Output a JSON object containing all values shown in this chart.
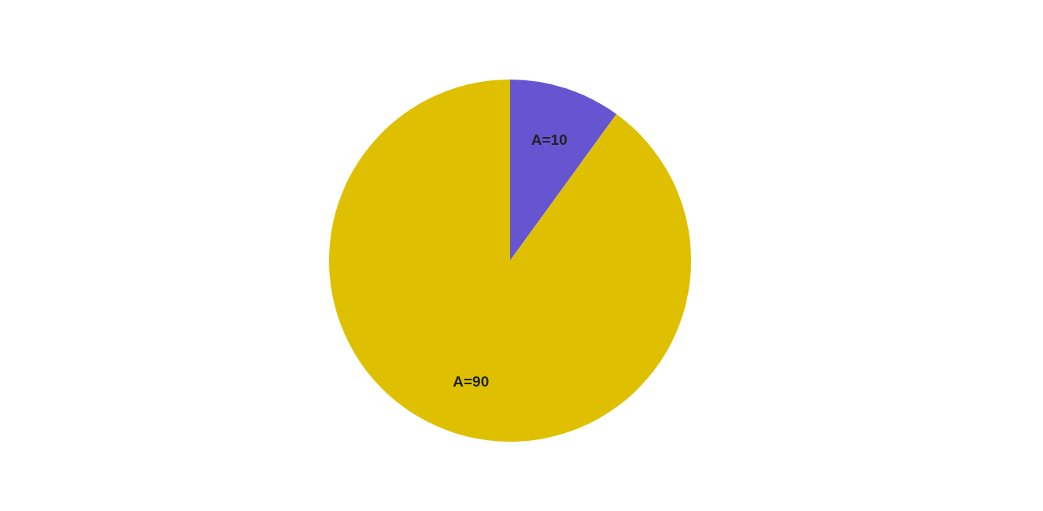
{
  "chart_data": {
    "type": "pie",
    "categories": [
      "A=10",
      "A=90"
    ],
    "values": [
      10,
      90
    ],
    "colors": [
      "#6655d1",
      "#dfc000"
    ]
  }
}
